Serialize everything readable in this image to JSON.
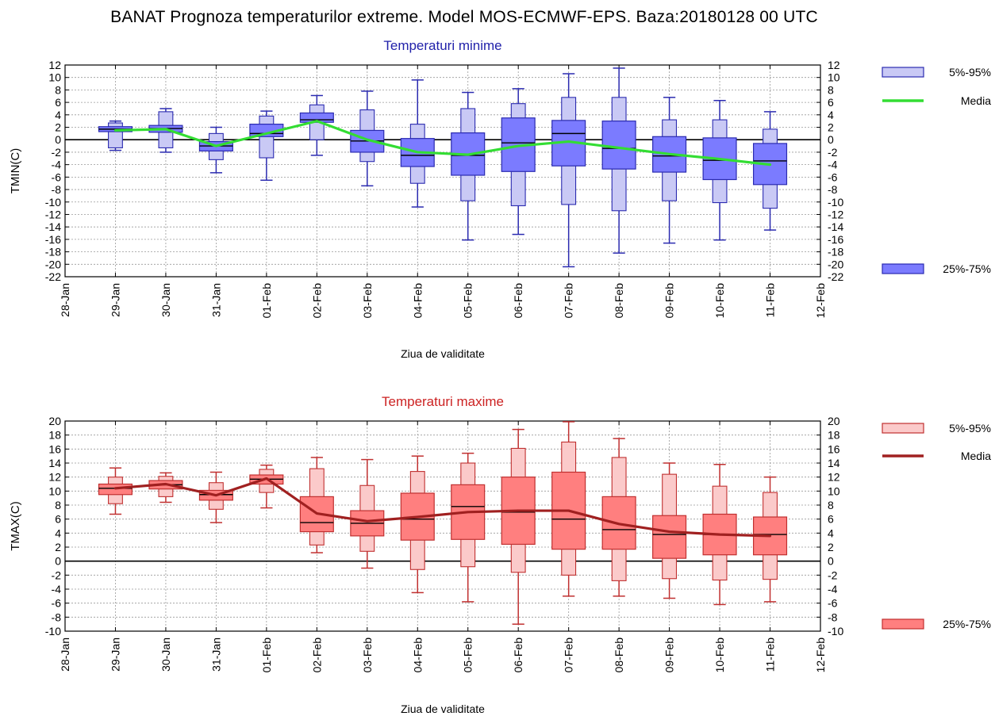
{
  "title": "BANAT  Prognoza temperaturilor extreme.  Model MOS-ECMWF-EPS. Baza:20180128 00 UTC",
  "colors": {
    "min_box": "#7b7bff",
    "min_box_stroke": "#2b2bb0",
    "min_whisker_box": "#c9c9f5",
    "min_line": "#33dd33",
    "min_title": "#2222aa",
    "max_box": "#ff7f7f",
    "max_box_stroke": "#c03030",
    "max_whisker_box": "#fbcaca",
    "max_line": "#a02020",
    "max_title": "#cc2222",
    "zero_line": "#000000",
    "grid": "#999999"
  },
  "chart_data": [
    {
      "type": "box",
      "title": "Temperaturi minime",
      "xlabel": "Ziua de validitate",
      "ylabel": "TMIN(C)",
      "xticks": [
        "28-Jan",
        "29-Jan",
        "30-Jan",
        "31-Jan",
        "01-Feb",
        "02-Feb",
        "03-Feb",
        "04-Feb",
        "05-Feb",
        "06-Feb",
        "07-Feb",
        "08-Feb",
        "09-Feb",
        "10-Feb",
        "11-Feb",
        "12-Feb"
      ],
      "yticks": [
        "12",
        "10",
        "8",
        "6",
        "4",
        "2",
        "0",
        "-2",
        "-4",
        "-6",
        "-8",
        "-10",
        "-12",
        "-14",
        "-16",
        "-18",
        "-20",
        "-22"
      ],
      "ylim": [
        -22,
        12
      ],
      "grid": true,
      "legend": [
        "5%-95%",
        "Media",
        "25%-75%"
      ],
      "boxes": [
        {
          "day": "29-Jan",
          "p5": -1.7,
          "p25": 1.3,
          "p50": 1.7,
          "p75": 2.1,
          "p95": 3.0,
          "p95box": 2.7,
          "p5box": -1.3
        },
        {
          "day": "30-Jan",
          "p5": -2.0,
          "p25": 1.2,
          "p50": 1.8,
          "p75": 2.3,
          "p95": 5.0,
          "p95box": 4.5,
          "p5box": -1.3
        },
        {
          "day": "31-Jan",
          "p5": -5.3,
          "p25": -1.8,
          "p50": -1.0,
          "p75": -0.3,
          "p95": 2.0,
          "p95box": 1.0,
          "p5box": -3.2
        },
        {
          "day": "01-Feb",
          "p5": -6.5,
          "p25": 0.5,
          "p50": 1.0,
          "p75": 2.5,
          "p95": 4.6,
          "p95box": 3.8,
          "p5box": -2.9
        },
        {
          "day": "02-Feb",
          "p5": -2.5,
          "p25": 2.8,
          "p50": 3.2,
          "p75": 4.3,
          "p95": 7.1,
          "p95box": 5.6,
          "p5box": 0.0
        },
        {
          "day": "03-Feb",
          "p5": -7.4,
          "p25": -2.0,
          "p50": -0.2,
          "p75": 1.5,
          "p95": 7.8,
          "p95box": 4.8,
          "p5box": -3.5
        },
        {
          "day": "04-Feb",
          "p5": -10.8,
          "p25": -4.3,
          "p50": -2.5,
          "p75": 0.2,
          "p95": 9.6,
          "p95box": 2.5,
          "p5box": -7.0
        },
        {
          "day": "05-Feb",
          "p5": -16.1,
          "p25": -5.7,
          "p50": -2.5,
          "p75": 1.1,
          "p95": 7.6,
          "p95box": 5.0,
          "p5box": -9.8
        },
        {
          "day": "06-Feb",
          "p5": -15.2,
          "p25": -5.1,
          "p50": -0.5,
          "p75": 3.5,
          "p95": 8.2,
          "p95box": 5.8,
          "p5box": -10.6
        },
        {
          "day": "07-Feb",
          "p5": -20.4,
          "p25": -4.2,
          "p50": 1.0,
          "p75": 3.1,
          "p95": 10.6,
          "p95box": 6.8,
          "p5box": -10.4
        },
        {
          "day": "08-Feb",
          "p5": -18.2,
          "p25": -4.7,
          "p50": -1.4,
          "p75": 3.0,
          "p95": 11.5,
          "p95box": 6.8,
          "p5box": -11.4
        },
        {
          "day": "09-Feb",
          "p5": -16.6,
          "p25": -5.2,
          "p50": -2.6,
          "p75": 0.5,
          "p95": 6.8,
          "p95box": 3.2,
          "p5box": -9.8
        },
        {
          "day": "10-Feb",
          "p5": -16.1,
          "p25": -6.4,
          "p50": -3.3,
          "p75": 0.3,
          "p95": 6.3,
          "p95box": 3.2,
          "p5box": -10.1
        },
        {
          "day": "11-Feb",
          "p5": -14.5,
          "p25": -7.2,
          "p50": -3.4,
          "p75": -0.6,
          "p95": 4.5,
          "p95box": 1.7,
          "p5box": -11.0
        }
      ],
      "media": [
        1.5,
        1.7,
        -1.0,
        1.0,
        3.0,
        0.0,
        -2.0,
        -2.4,
        -1.0,
        -0.3,
        -1.3,
        -2.3,
        -3.1,
        -4.0
      ]
    },
    {
      "type": "box",
      "title": "Temperaturi maxime",
      "xlabel": "Ziua de validitate",
      "ylabel": "TMAX(C)",
      "xticks": [
        "28-Jan",
        "29-Jan",
        "30-Jan",
        "31-Jan",
        "01-Feb",
        "02-Feb",
        "03-Feb",
        "04-Feb",
        "05-Feb",
        "06-Feb",
        "07-Feb",
        "08-Feb",
        "09-Feb",
        "10-Feb",
        "11-Feb",
        "12-Feb"
      ],
      "yticks": [
        "20",
        "18",
        "16",
        "14",
        "12",
        "10",
        "8",
        "6",
        "4",
        "2",
        "0",
        "-2",
        "-4",
        "-6",
        "-8",
        "-10"
      ],
      "ylim": [
        -10,
        20
      ],
      "grid": true,
      "legend": [
        "5%-95%",
        "Media",
        "25%-75%"
      ],
      "boxes": [
        {
          "day": "29-Jan",
          "p5": 6.7,
          "p25": 9.5,
          "p50": 10.4,
          "p75": 11.0,
          "p95": 13.3,
          "p95box": 12.0,
          "p5box": 8.2
        },
        {
          "day": "30-Jan",
          "p5": 8.4,
          "p25": 10.3,
          "p50": 10.9,
          "p75": 11.5,
          "p95": 12.6,
          "p95box": 12.1,
          "p5box": 9.2
        },
        {
          "day": "31-Jan",
          "p5": 5.5,
          "p25": 8.7,
          "p50": 9.5,
          "p75": 10.1,
          "p95": 12.7,
          "p95box": 11.2,
          "p5box": 7.4
        },
        {
          "day": "01-Feb",
          "p5": 7.6,
          "p25": 11.0,
          "p50": 11.7,
          "p75": 12.3,
          "p95": 13.7,
          "p95box": 13.1,
          "p5box": 9.8
        },
        {
          "day": "02-Feb",
          "p5": 1.2,
          "p25": 4.2,
          "p50": 5.5,
          "p75": 9.2,
          "p95": 14.8,
          "p95box": 13.2,
          "p5box": 2.3
        },
        {
          "day": "03-Feb",
          "p5": -1.0,
          "p25": 3.6,
          "p50": 5.4,
          "p75": 7.2,
          "p95": 14.5,
          "p95box": 10.8,
          "p5box": 1.4
        },
        {
          "day": "04-Feb",
          "p5": -4.5,
          "p25": 3.0,
          "p50": 6.0,
          "p75": 9.7,
          "p95": 15.0,
          "p95box": 12.8,
          "p5box": -1.2
        },
        {
          "day": "05-Feb",
          "p5": -5.8,
          "p25": 3.1,
          "p50": 7.8,
          "p75": 10.9,
          "p95": 15.4,
          "p95box": 14.0,
          "p5box": -0.8
        },
        {
          "day": "06-Feb",
          "p5": -9.0,
          "p25": 2.4,
          "p50": 7.0,
          "p75": 12.0,
          "p95": 18.8,
          "p95box": 16.1,
          "p5box": -1.6
        },
        {
          "day": "07-Feb",
          "p5": -5.0,
          "p25": 1.7,
          "p50": 6.0,
          "p75": 12.7,
          "p95": 19.9,
          "p95box": 17.0,
          "p5box": -2.0
        },
        {
          "day": "08-Feb",
          "p5": -5.0,
          "p25": 1.7,
          "p50": 4.5,
          "p75": 9.2,
          "p95": 17.5,
          "p95box": 14.8,
          "p5box": -2.8
        },
        {
          "day": "09-Feb",
          "p5": -5.3,
          "p25": 0.4,
          "p50": 3.8,
          "p75": 6.5,
          "p95": 14.0,
          "p95box": 12.4,
          "p5box": -2.5
        },
        {
          "day": "10-Feb",
          "p5": -6.2,
          "p25": 0.9,
          "p50": 3.8,
          "p75": 6.7,
          "p95": 13.8,
          "p95box": 10.7,
          "p5box": -2.7
        },
        {
          "day": "11-Feb",
          "p5": -5.8,
          "p25": 0.9,
          "p50": 3.8,
          "p75": 6.3,
          "p95": 12.0,
          "p95box": 9.8,
          "p5box": -2.6
        }
      ],
      "media": [
        10.4,
        11.0,
        9.4,
        11.8,
        6.8,
        5.7,
        6.3,
        7.0,
        7.2,
        7.2,
        5.3,
        4.2,
        3.8,
        3.6
      ]
    }
  ]
}
